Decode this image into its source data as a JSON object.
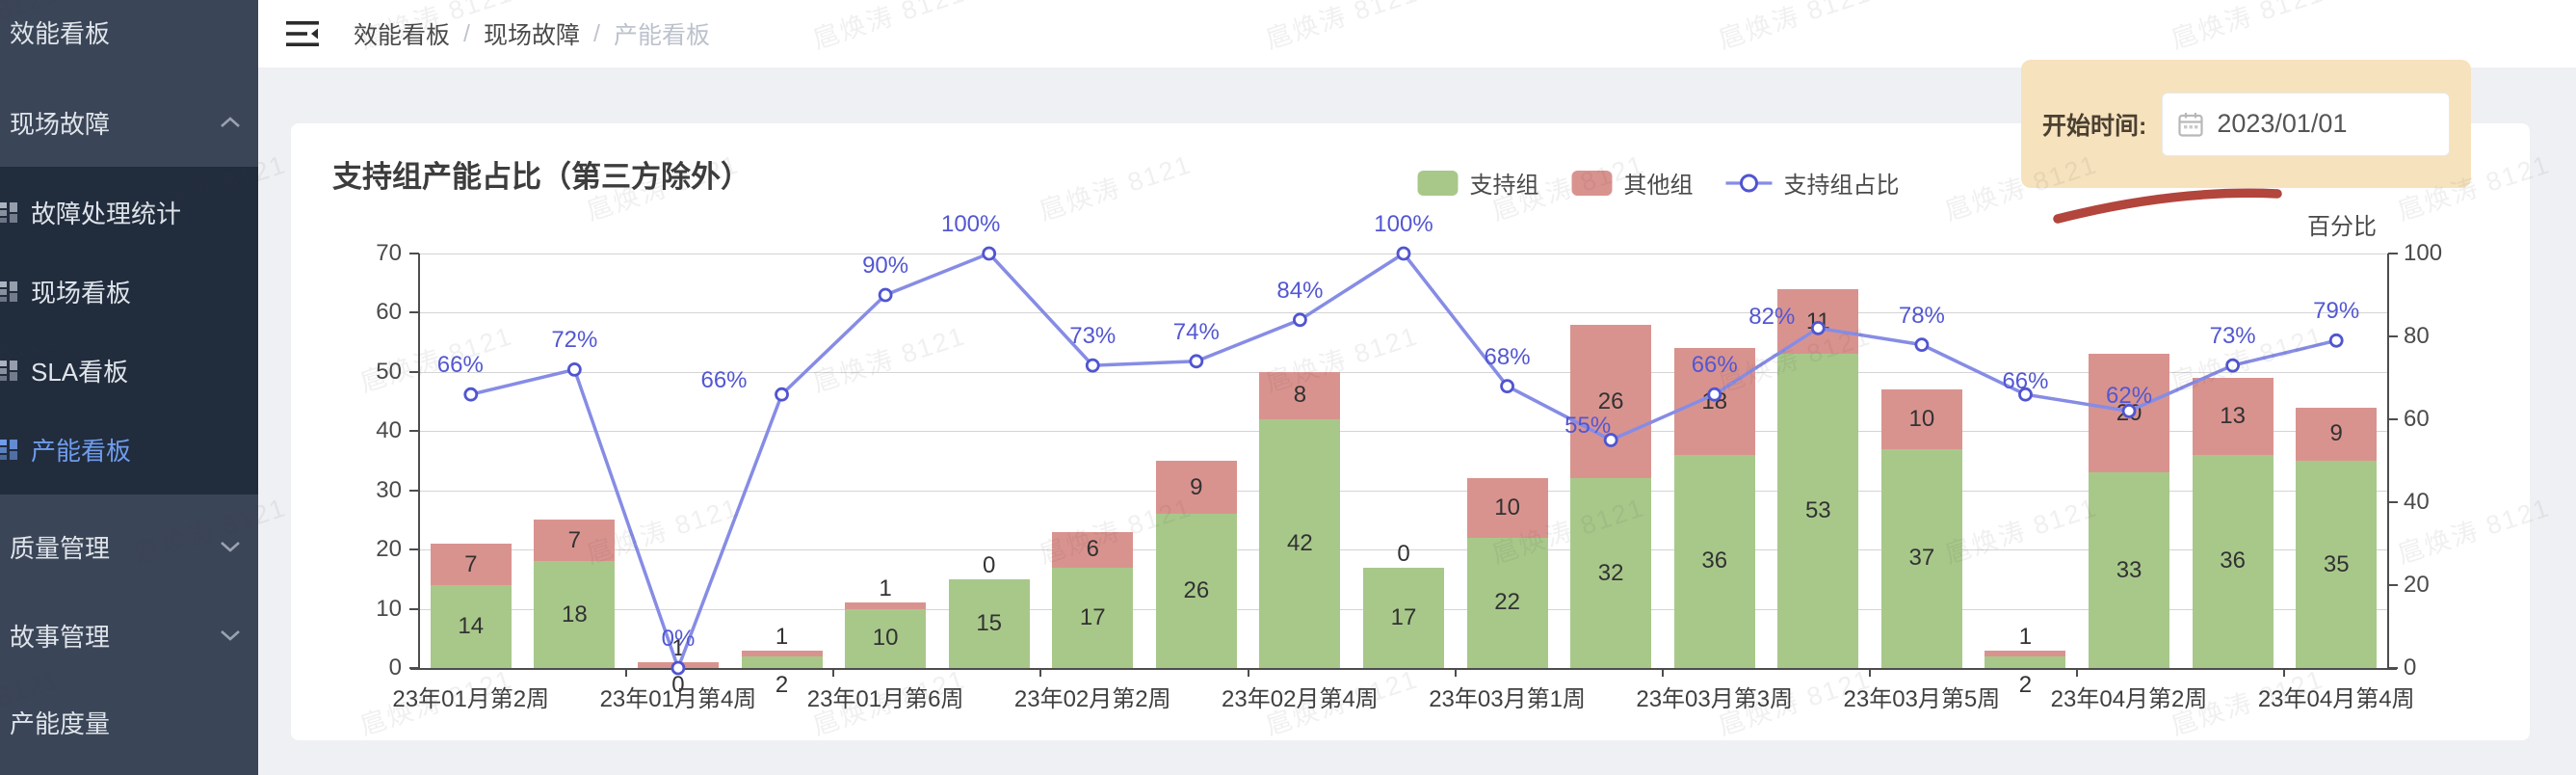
{
  "watermark": {
    "text": "扈焕涛 8121"
  },
  "sidebar": {
    "items": [
      {
        "label": "效能看板",
        "type": "top"
      },
      {
        "label": "现场故障",
        "type": "group",
        "state": "expanded",
        "children": [
          {
            "label": "故障处理统计",
            "selected": false
          },
          {
            "label": "现场看板",
            "selected": false
          },
          {
            "label": "SLA看板",
            "selected": false
          },
          {
            "label": "产能看板",
            "selected": true
          }
        ]
      },
      {
        "label": "质量管理",
        "type": "group",
        "state": "collapsed"
      },
      {
        "label": "故事管理",
        "type": "group",
        "state": "collapsed"
      },
      {
        "label": "产能度量",
        "type": "top"
      }
    ]
  },
  "header": {
    "breadcrumb": [
      {
        "label": "效能看板",
        "current": false
      },
      {
        "label": "现场故障",
        "current": false
      },
      {
        "label": "产能看板",
        "current": true
      }
    ],
    "separator": "/"
  },
  "filter": {
    "label": "开始时间:",
    "value": "2023/01/01",
    "icon": "calendar-icon"
  },
  "chart_data": {
    "type": "bar",
    "subtype": "stacked-bar-with-line",
    "title": "支持组产能占比（第三方除外）",
    "legend": [
      "支持组",
      "其他组",
      "支持组占比"
    ],
    "n_categories": 19,
    "x_tick_labels": [
      "23年01月第2周",
      "23年01月第4周",
      "23年01月第6周",
      "23年02月第2周",
      "23年02月第4周",
      "23年03月第1周",
      "23年03月第3周",
      "23年03月第5周",
      "23年04月第2周",
      "23年04月第4周"
    ],
    "x_label_interval": 2,
    "series": [
      {
        "name": "支持组",
        "type": "bar",
        "stack": true,
        "color": "#a8c88a",
        "values": [
          14,
          18,
          0,
          2,
          10,
          15,
          17,
          26,
          42,
          17,
          22,
          32,
          36,
          53,
          37,
          2,
          33,
          36,
          35
        ]
      },
      {
        "name": "其他组",
        "type": "bar",
        "stack": true,
        "color": "#d9938f",
        "values": [
          7,
          7,
          1,
          1,
          1,
          0,
          6,
          9,
          8,
          0,
          10,
          26,
          18,
          11,
          10,
          1,
          20,
          13,
          9
        ]
      },
      {
        "name": "支持组占比",
        "type": "line",
        "color": "#868ce5",
        "marker_color": "#5055d0",
        "unit": "%",
        "values": [
          66,
          72,
          0,
          66,
          90,
          100,
          73,
          74,
          84,
          100,
          68,
          55,
          66,
          82,
          78,
          66,
          62,
          73,
          79
        ]
      }
    ],
    "y_left": {
      "min": 0,
      "max": 70,
      "step": 10
    },
    "y_right": {
      "min": 0,
      "max": 100,
      "step": 20,
      "title": "百分比"
    },
    "grid": true,
    "legend_position": "top-center"
  }
}
